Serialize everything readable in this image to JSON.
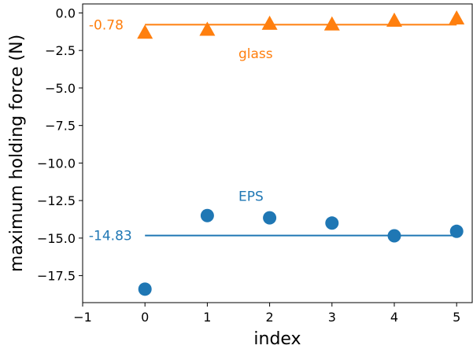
{
  "chart_data": {
    "type": "scatter",
    "xlabel": "index",
    "ylabel": "maximum holding force (N)",
    "xlim": [
      -1,
      5.25
    ],
    "ylim": [
      -19.3,
      0.6
    ],
    "x_ticks": [
      -1,
      0,
      1,
      2,
      3,
      4,
      5
    ],
    "x_tick_labels": [
      "−1",
      "0",
      "1",
      "2",
      "3",
      "4",
      "5"
    ],
    "y_ticks": [
      0,
      -2.5,
      -5,
      -7.5,
      -10,
      -12.5,
      -15,
      -17.5
    ],
    "y_tick_labels": [
      "0.0",
      "−2.5",
      "−5.0",
      "−7.5",
      "−10.0",
      "−12.5",
      "−15.0",
      "−17.5"
    ],
    "grid": false,
    "series": [
      {
        "name": "glass",
        "marker": "triangle",
        "color": "#ff7f0e",
        "x": [
          0,
          1,
          2,
          3,
          4,
          5
        ],
        "y": [
          -1.3,
          -1.1,
          -0.7,
          -0.75,
          -0.5,
          -0.35
        ],
        "mean": -0.78,
        "mean_label": "-0.78",
        "label_position": [
          1.5,
          -2.7
        ]
      },
      {
        "name": "EPS",
        "marker": "circle",
        "color": "#1f77b4",
        "x": [
          0,
          1,
          2,
          3,
          4,
          5
        ],
        "y": [
          -18.4,
          -13.5,
          -13.65,
          -14.0,
          -14.85,
          -14.55
        ],
        "mean": -14.83,
        "mean_label": "-14.83",
        "label_position": [
          1.5,
          -12.2
        ]
      }
    ],
    "mean_line_x": [
      0,
      5
    ]
  }
}
